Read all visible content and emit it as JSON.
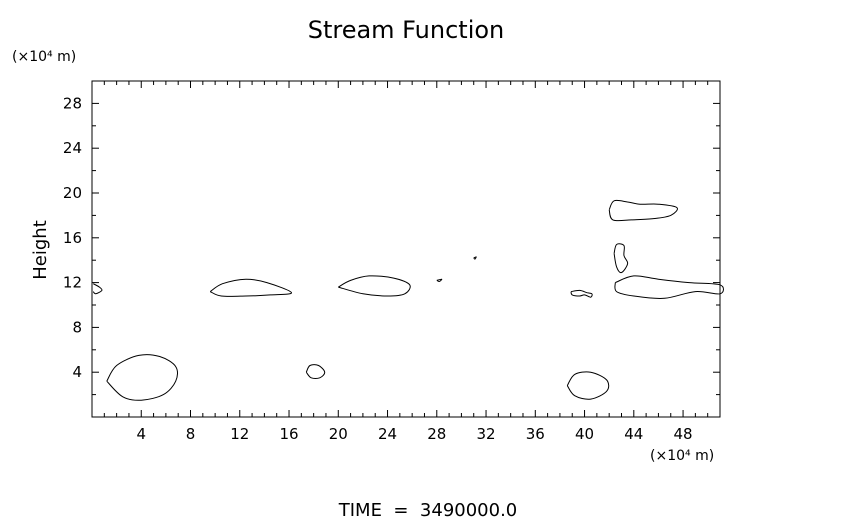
{
  "chart_data": {
    "type": "contour",
    "title": "Stream Function",
    "ylabel": "Height",
    "y_unit_label": "(×10⁴ m)",
    "x_unit_label": "(×10⁴ m)",
    "footer": "TIME  =  3490000.0",
    "xlim": [
      0,
      51
    ],
    "ylim": [
      0,
      30
    ],
    "x_ticks": [
      4,
      8,
      12,
      16,
      20,
      24,
      28,
      32,
      36,
      40,
      44,
      48
    ],
    "y_ticks": [
      4,
      8,
      12,
      16,
      20,
      24,
      28
    ],
    "x_tick_labels": [
      "4",
      "8",
      "12",
      "16",
      "20",
      "24",
      "28",
      "32",
      "36",
      "40",
      "44",
      "48"
    ],
    "y_tick_labels": [
      "4",
      "8",
      "12",
      "16",
      "20",
      "24",
      "28"
    ],
    "contours": [
      {
        "points": [
          [
            1.2,
            3.2
          ],
          [
            2.0,
            4.6
          ],
          [
            3.8,
            5.5
          ],
          [
            5.5,
            5.4
          ],
          [
            6.8,
            4.5
          ],
          [
            6.8,
            3.2
          ],
          [
            5.8,
            2.0
          ],
          [
            4.0,
            1.5
          ],
          [
            2.5,
            1.8
          ],
          [
            1.2,
            3.2
          ]
        ]
      },
      {
        "points": [
          [
            17.4,
            4.0
          ],
          [
            17.7,
            4.6
          ],
          [
            18.4,
            4.6
          ],
          [
            18.9,
            4.0
          ],
          [
            18.5,
            3.5
          ],
          [
            17.8,
            3.5
          ],
          [
            17.4,
            4.0
          ]
        ]
      },
      {
        "points": [
          [
            38.6,
            2.8
          ],
          [
            39.2,
            3.8
          ],
          [
            40.5,
            4.0
          ],
          [
            41.8,
            3.3
          ],
          [
            41.8,
            2.3
          ],
          [
            40.5,
            1.6
          ],
          [
            39.2,
            1.9
          ],
          [
            38.6,
            2.8
          ]
        ]
      },
      {
        "points": [
          [
            0.1,
            11.9
          ],
          [
            0.6,
            11.6
          ],
          [
            0.8,
            11.3
          ],
          [
            0.3,
            11.0
          ],
          [
            0.1,
            11.2
          ]
        ]
      },
      {
        "points": [
          [
            9.6,
            11.2
          ],
          [
            10.6,
            11.9
          ],
          [
            12.5,
            12.3
          ],
          [
            14.2,
            12.0
          ],
          [
            16.2,
            11.1
          ],
          [
            14.5,
            10.9
          ],
          [
            12.5,
            10.8
          ],
          [
            10.5,
            10.8
          ],
          [
            9.6,
            11.2
          ]
        ]
      },
      {
        "points": [
          [
            20.0,
            11.6
          ],
          [
            21.0,
            12.2
          ],
          [
            22.5,
            12.6
          ],
          [
            24.5,
            12.4
          ],
          [
            25.8,
            11.8
          ],
          [
            25.4,
            11.0
          ],
          [
            24.0,
            10.8
          ],
          [
            22.0,
            11.0
          ],
          [
            20.0,
            11.6
          ]
        ]
      },
      {
        "points": [
          [
            28.0,
            12.2
          ],
          [
            28.4,
            12.3
          ],
          [
            28.2,
            12.1
          ],
          [
            28.0,
            12.2
          ]
        ]
      },
      {
        "points": [
          [
            31.0,
            14.2
          ],
          [
            31.2,
            14.3
          ],
          [
            31.1,
            14.1
          ],
          [
            31.0,
            14.2
          ]
        ]
      },
      {
        "points": [
          [
            38.9,
            11.2
          ],
          [
            39.6,
            11.3
          ],
          [
            40.2,
            11.1
          ],
          [
            40.6,
            11.0
          ],
          [
            40.5,
            10.7
          ],
          [
            40.0,
            10.9
          ],
          [
            39.6,
            10.8
          ],
          [
            39.0,
            10.9
          ],
          [
            38.9,
            11.2
          ]
        ]
      },
      {
        "points": [
          [
            42.5,
            12.0
          ],
          [
            44.0,
            12.6
          ],
          [
            46.0,
            12.3
          ],
          [
            48.5,
            12.0
          ],
          [
            51.0,
            11.8
          ],
          [
            51.0,
            11.0
          ],
          [
            49.0,
            11.2
          ],
          [
            46.5,
            10.6
          ],
          [
            44.0,
            10.8
          ],
          [
            42.6,
            11.2
          ],
          [
            42.5,
            12.0
          ]
        ]
      },
      {
        "points": [
          [
            42.4,
            14.6
          ],
          [
            42.6,
            15.4
          ],
          [
            43.2,
            15.3
          ],
          [
            43.2,
            14.4
          ],
          [
            43.5,
            13.7
          ],
          [
            43.0,
            12.9
          ],
          [
            42.6,
            13.4
          ],
          [
            42.4,
            14.6
          ]
        ]
      },
      {
        "points": [
          [
            42.0,
            18.5
          ],
          [
            42.4,
            19.3
          ],
          [
            43.5,
            19.2
          ],
          [
            44.5,
            19.0
          ],
          [
            46.0,
            19.0
          ],
          [
            47.5,
            18.7
          ],
          [
            47.0,
            18.0
          ],
          [
            45.5,
            17.7
          ],
          [
            43.8,
            17.6
          ],
          [
            42.3,
            17.6
          ],
          [
            42.0,
            18.5
          ]
        ]
      }
    ]
  }
}
